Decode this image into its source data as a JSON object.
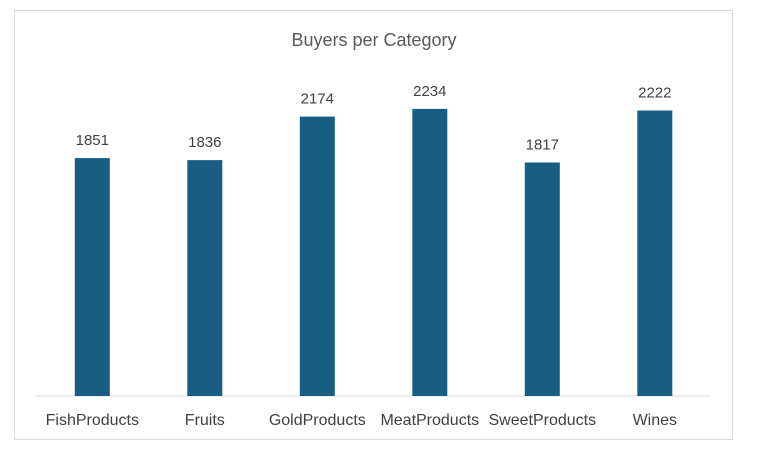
{
  "chart_data": {
    "type": "bar",
    "title": "Buyers per Category",
    "categories": [
      "FishProducts",
      "Fruits",
      "GoldProducts",
      "MeatProducts",
      "SweetProducts",
      "Wines"
    ],
    "values": [
      1851,
      1836,
      2174,
      2234,
      1817,
      2222
    ],
    "ylim": [
      0,
      2500
    ],
    "grid": false,
    "legend": "none",
    "bar_color": "#175E82",
    "data_labels": true
  }
}
